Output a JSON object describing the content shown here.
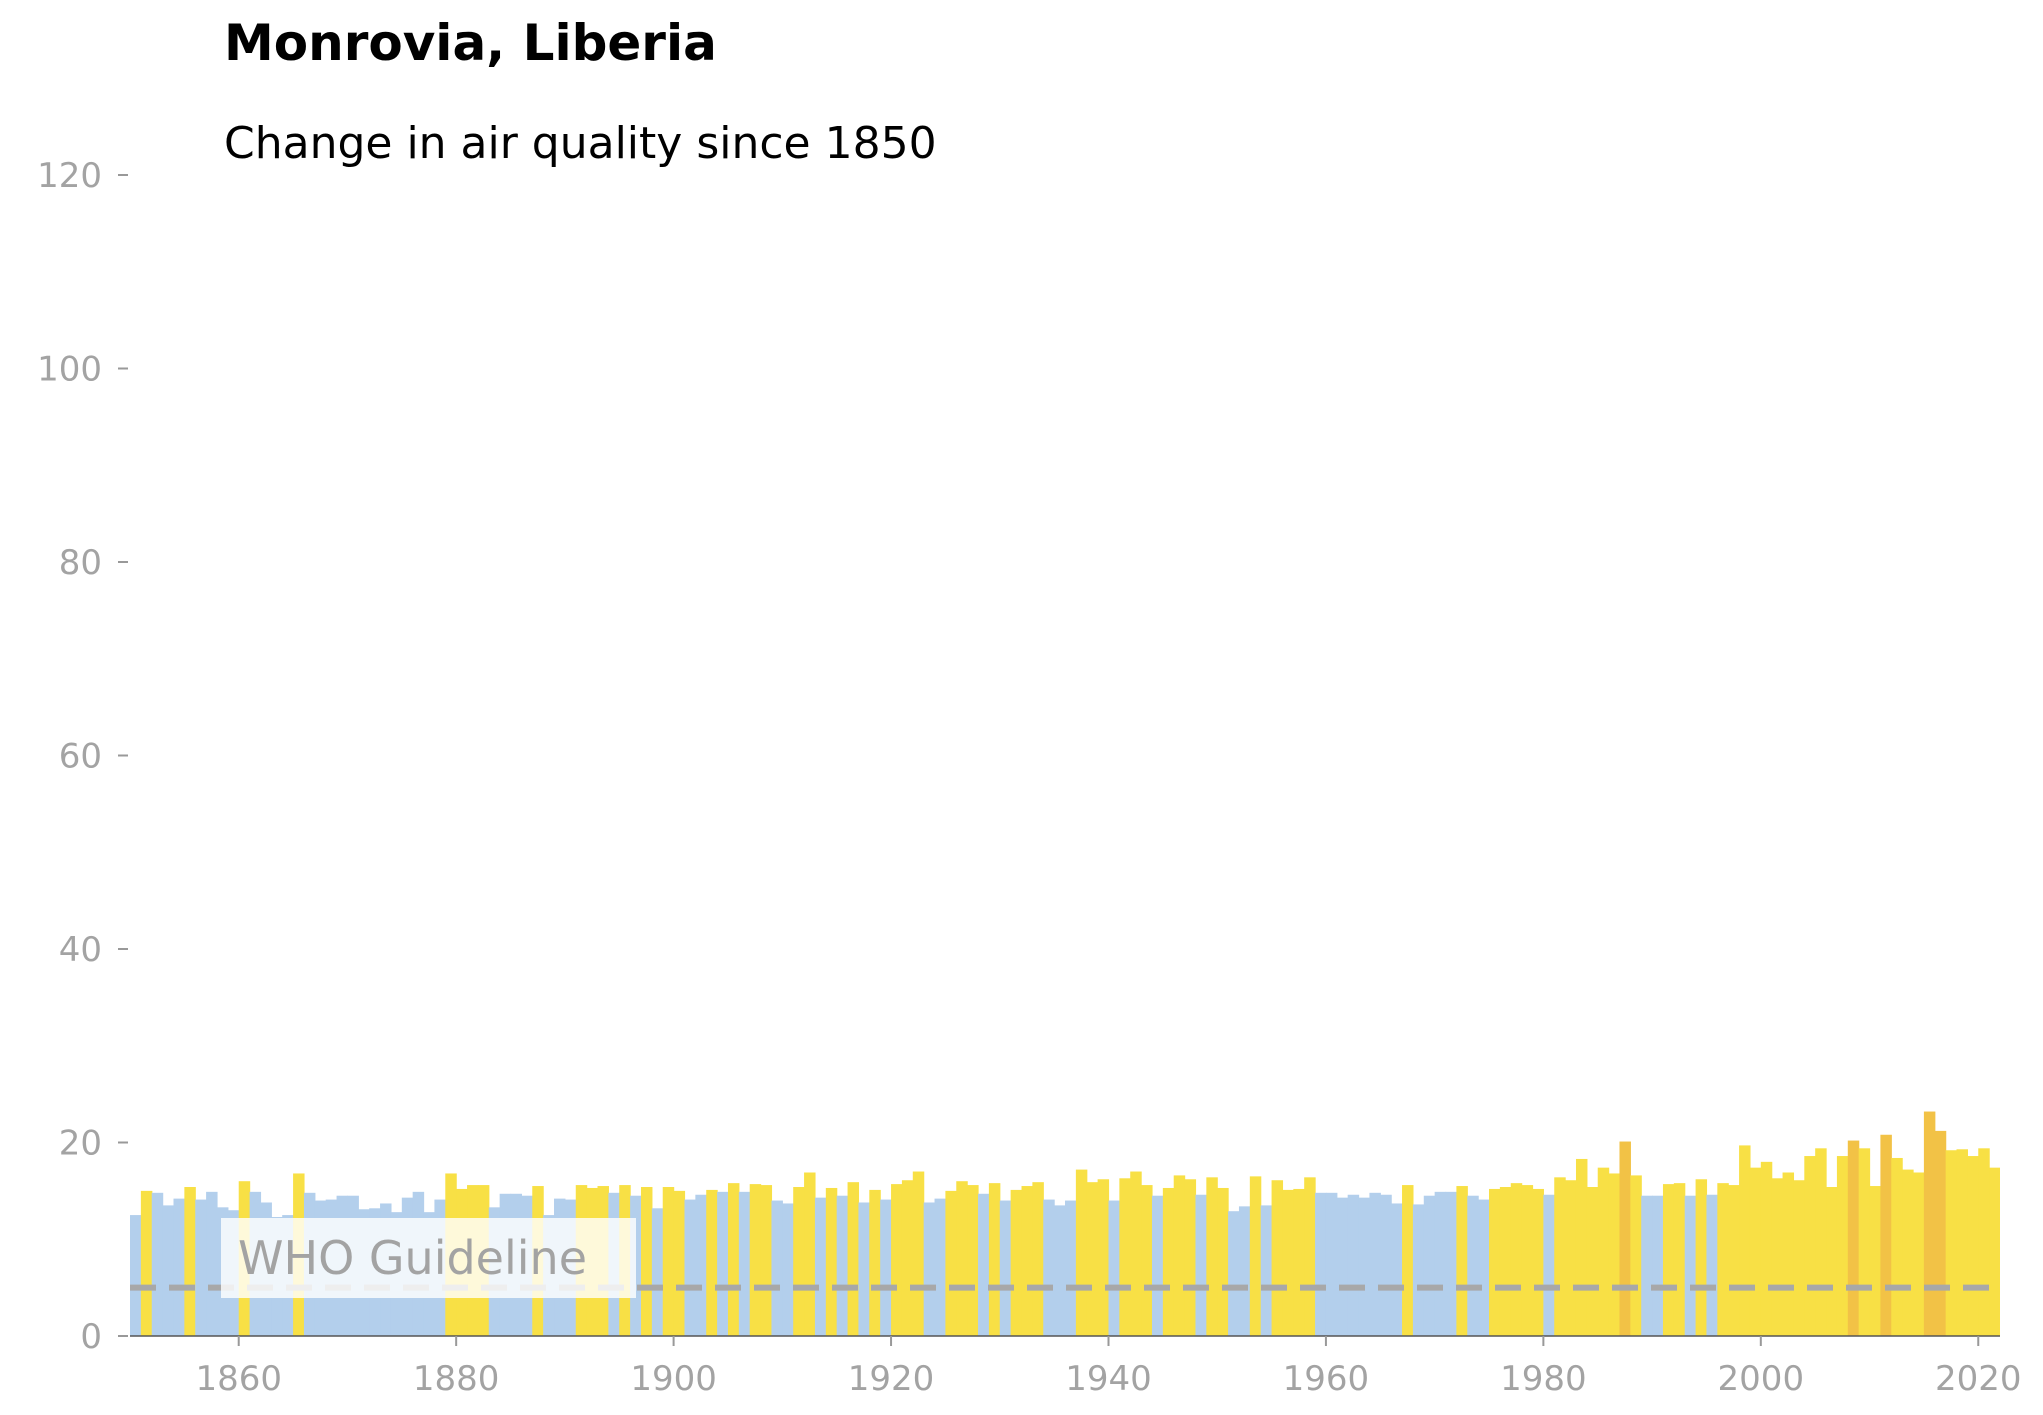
{
  "chart_data": {
    "type": "bar",
    "title": "Monrovia, Liberia",
    "subtitle": "Change in air quality since 1850",
    "xlabel": "",
    "ylabel": "",
    "xlim": [
      1850,
      2022
    ],
    "ylim": [
      0,
      120
    ],
    "x_ticks": [
      1860,
      1880,
      1900,
      1920,
      1940,
      1960,
      1980,
      2000,
      2020
    ],
    "y_ticks": [
      0,
      20,
      40,
      60,
      80,
      100,
      120
    ],
    "grid": false,
    "legend": "none",
    "colors": {
      "below": "#b3cfec",
      "above": "#f8e045",
      "high": "#f2c246",
      "guideline": "#a8a8a8",
      "axis": "#999999"
    },
    "color_thresholds": {
      "above": 15,
      "high": 20
    },
    "guideline": {
      "label": "WHO Guideline",
      "value": 5
    },
    "years": [
      1850,
      1851,
      1852,
      1853,
      1854,
      1855,
      1856,
      1857,
      1858,
      1859,
      1860,
      1861,
      1862,
      1863,
      1864,
      1865,
      1866,
      1867,
      1868,
      1869,
      1870,
      1871,
      1872,
      1873,
      1874,
      1875,
      1876,
      1877,
      1878,
      1879,
      1880,
      1881,
      1882,
      1883,
      1884,
      1885,
      1886,
      1887,
      1888,
      1889,
      1890,
      1891,
      1892,
      1893,
      1894,
      1895,
      1896,
      1897,
      1898,
      1899,
      1900,
      1901,
      1902,
      1903,
      1904,
      1905,
      1906,
      1907,
      1908,
      1909,
      1910,
      1911,
      1912,
      1913,
      1914,
      1915,
      1916,
      1917,
      1918,
      1919,
      1920,
      1921,
      1922,
      1923,
      1924,
      1925,
      1926,
      1927,
      1928,
      1929,
      1930,
      1931,
      1932,
      1933,
      1934,
      1935,
      1936,
      1937,
      1938,
      1939,
      1940,
      1941,
      1942,
      1943,
      1944,
      1945,
      1946,
      1947,
      1948,
      1949,
      1950,
      1951,
      1952,
      1953,
      1954,
      1955,
      1956,
      1957,
      1958,
      1959,
      1960,
      1961,
      1962,
      1963,
      1964,
      1965,
      1966,
      1967,
      1968,
      1969,
      1970,
      1971,
      1972,
      1973,
      1974,
      1975,
      1976,
      1977,
      1978,
      1979,
      1980,
      1981,
      1982,
      1983,
      1984,
      1985,
      1986,
      1987,
      1988,
      1989,
      1990,
      1991,
      1992,
      1993,
      1994,
      1995,
      1996,
      1997,
      1998,
      1999,
      2000,
      2001,
      2002,
      2003,
      2004,
      2005,
      2006,
      2007,
      2008,
      2009,
      2010,
      2011,
      2012,
      2013,
      2014,
      2015,
      2016,
      2017,
      2018,
      2019,
      2020,
      2021,
      2022
    ],
    "values": [
      12.5,
      15.0,
      14.8,
      13.5,
      14.2,
      15.4,
      14.1,
      14.9,
      13.3,
      13.0,
      16.0,
      14.9,
      13.8,
      12.3,
      12.5,
      16.8,
      14.8,
      14.0,
      14.1,
      14.5,
      14.5,
      13.1,
      13.2,
      13.7,
      12.8,
      14.3,
      14.9,
      12.8,
      14.1,
      16.8,
      15.2,
      15.6,
      15.6,
      13.3,
      14.7,
      14.7,
      14.5,
      15.5,
      12.5,
      14.2,
      14.1,
      15.6,
      15.3,
      15.5,
      14.8,
      15.6,
      14.5,
      15.4,
      13.2,
      15.4,
      15.0,
      14.1,
      14.6,
      15.1,
      14.9,
      15.8,
      14.9,
      15.7,
      15.6,
      14.0,
      13.7,
      15.4,
      16.9,
      14.3,
      15.3,
      14.5,
      15.9,
      13.8,
      15.1,
      14.1,
      15.7,
      16.1,
      17.0,
      13.8,
      14.2,
      15.0,
      16.0,
      15.6,
      14.7,
      15.8,
      14.0,
      15.1,
      15.5,
      15.9,
      14.1,
      13.5,
      14.0,
      17.2,
      15.9,
      16.2,
      14.0,
      16.3,
      17.0,
      15.6,
      14.5,
      15.3,
      16.6,
      16.2,
      14.6,
      16.4,
      15.3,
      12.9,
      13.4,
      16.5,
      13.5,
      16.1,
      15.1,
      15.2,
      16.4,
      14.8,
      14.8,
      14.3,
      14.6,
      14.3,
      14.8,
      14.6,
      13.7,
      15.6,
      13.6,
      14.5,
      14.9,
      14.9,
      15.5,
      14.5,
      14.1,
      15.2,
      15.4,
      15.8,
      15.6,
      15.2,
      14.6,
      16.4,
      16.1,
      18.3,
      15.4,
      17.4,
      16.8,
      20.1,
      16.6,
      14.5,
      14.5,
      15.7,
      15.8,
      14.5,
      16.2,
      14.6,
      15.8,
      15.6,
      19.7,
      17.4,
      18.0,
      16.3,
      16.9,
      16.1,
      18.6,
      19.4,
      15.4,
      18.6,
      20.2,
      19.4,
      15.5,
      20.8,
      18.4,
      17.2,
      16.9,
      23.2,
      21.2,
      19.2,
      19.3,
      18.6,
      19.4,
      17.4,
      17.9
    ]
  }
}
